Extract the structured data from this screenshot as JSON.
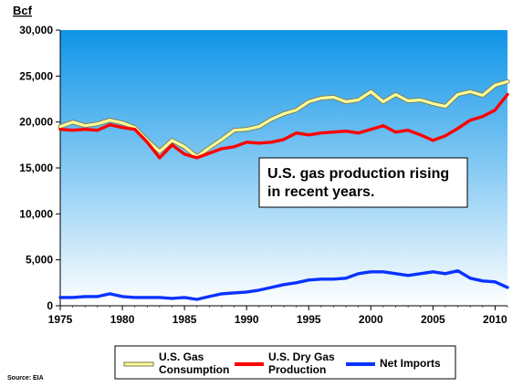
{
  "chart_data": {
    "type": "line",
    "title": "",
    "xlabel": "",
    "ylabel": "Bcf",
    "xlim": [
      1975,
      2011
    ],
    "ylim": [
      0,
      30000
    ],
    "x_ticks": [
      "1975",
      "1980",
      "1985",
      "1990",
      "1995",
      "2000",
      "2005",
      "2010"
    ],
    "y_ticks": [
      "0",
      "5,000",
      "10,000",
      "15,000",
      "20,000",
      "25,000",
      "30,000"
    ],
    "grid": false,
    "legend_position": "bottom",
    "annotation": {
      "lines": [
        "U.S. gas production rising",
        "in recent years."
      ]
    },
    "source": "Source: EIA",
    "colors": {
      "plot_background_top": "#0e95e8",
      "plot_background_bottom": "#ffffff"
    },
    "series": [
      {
        "name": "U.S. Gas Consumption",
        "legend_lines": [
          "U.S. Gas",
          "Consumption"
        ],
        "color": "#ffff99",
        "outline": "#7a7a55",
        "x": [
          1975,
          1976,
          1977,
          1978,
          1979,
          1980,
          1981,
          1982,
          1983,
          1984,
          1985,
          1986,
          1987,
          1988,
          1989,
          1990,
          1991,
          1992,
          1993,
          1994,
          1995,
          1996,
          1997,
          1998,
          1999,
          2000,
          2001,
          2002,
          2003,
          2004,
          2005,
          2006,
          2007,
          2008,
          2009,
          2010,
          2011
        ],
        "y": [
          19500,
          20000,
          19600,
          19800,
          20200,
          19900,
          19400,
          18000,
          16800,
          18000,
          17300,
          16200,
          17200,
          18100,
          19100,
          19200,
          19500,
          20300,
          20900,
          21300,
          22200,
          22600,
          22700,
          22200,
          22400,
          23300,
          22200,
          23000,
          22300,
          22400,
          22000,
          21700,
          23000,
          23300,
          22900,
          24000,
          24400
        ]
      },
      {
        "name": "U.S. Dry Gas Production",
        "legend_lines": [
          "U.S. Dry Gas",
          "Production"
        ],
        "color": "#ff0000",
        "outline": null,
        "x": [
          1975,
          1976,
          1977,
          1978,
          1979,
          1980,
          1981,
          1982,
          1983,
          1984,
          1985,
          1986,
          1987,
          1988,
          1989,
          1990,
          1991,
          1992,
          1993,
          1994,
          1995,
          1996,
          1997,
          1998,
          1999,
          2000,
          2001,
          2002,
          2003,
          2004,
          2005,
          2006,
          2007,
          2008,
          2009,
          2010,
          2011
        ],
        "y": [
          19200,
          19100,
          19200,
          19100,
          19700,
          19400,
          19200,
          17800,
          16100,
          17500,
          16500,
          16100,
          16600,
          17100,
          17300,
          17800,
          17700,
          17800,
          18100,
          18800,
          18600,
          18800,
          18900,
          19000,
          18800,
          19200,
          19600,
          18900,
          19100,
          18600,
          18000,
          18500,
          19300,
          20200,
          20600,
          21300,
          23000
        ]
      },
      {
        "name": "Net Imports",
        "legend_lines": [
          "Net Imports"
        ],
        "color": "#0a33ff",
        "outline": null,
        "x": [
          1975,
          1976,
          1977,
          1978,
          1979,
          1980,
          1981,
          1982,
          1983,
          1984,
          1985,
          1986,
          1987,
          1988,
          1989,
          1990,
          1991,
          1992,
          1993,
          1994,
          1995,
          1996,
          1997,
          1998,
          1999,
          2000,
          2001,
          2002,
          2003,
          2004,
          2005,
          2006,
          2007,
          2008,
          2009,
          2010,
          2011
        ],
        "y": [
          900,
          900,
          1000,
          1000,
          1300,
          1000,
          900,
          900,
          900,
          800,
          900,
          700,
          1000,
          1300,
          1400,
          1500,
          1700,
          2000,
          2300,
          2500,
          2800,
          2900,
          2900,
          3000,
          3500,
          3700,
          3700,
          3500,
          3300,
          3500,
          3700,
          3500,
          3800,
          3000,
          2700,
          2600,
          2000
        ]
      }
    ]
  }
}
